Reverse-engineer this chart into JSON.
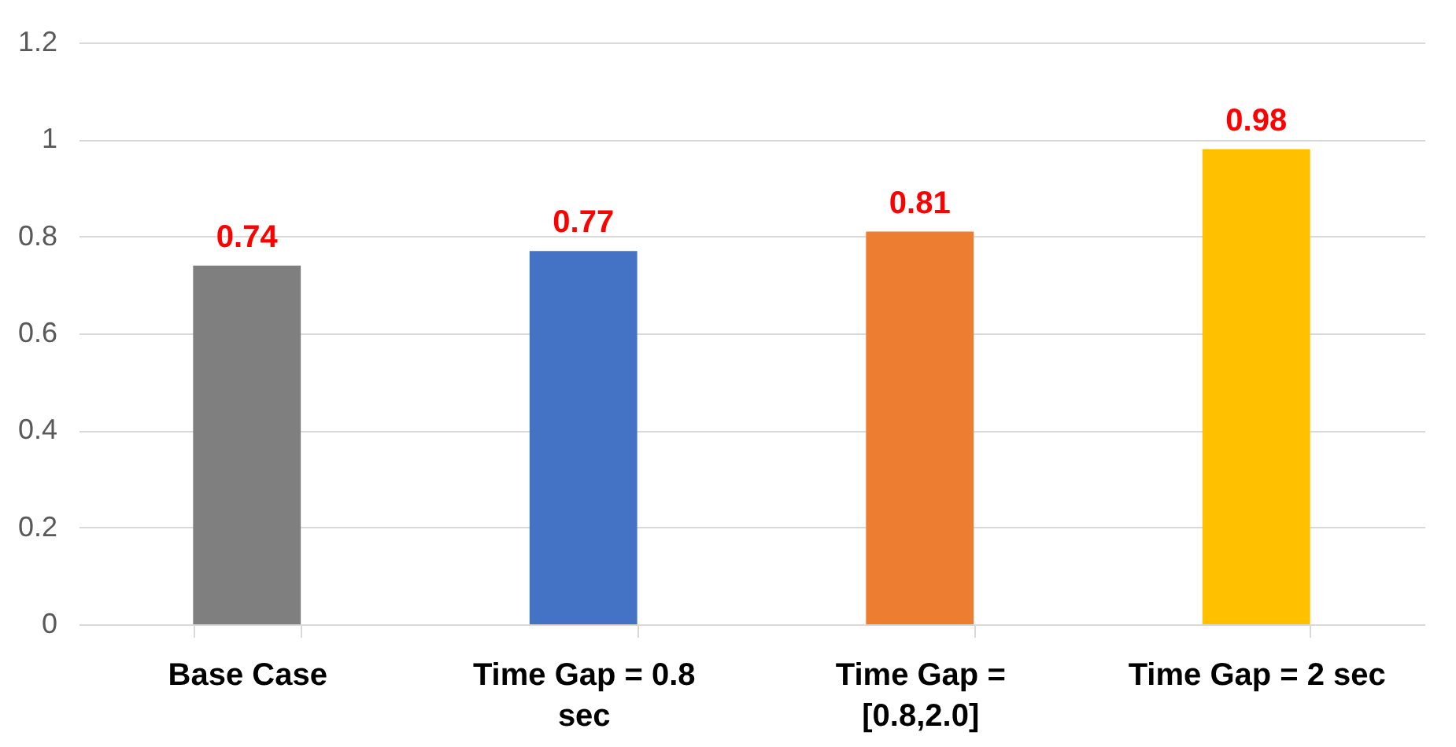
{
  "chart_data": {
    "type": "bar",
    "categories": [
      "Base Case",
      "Time Gap = 0.8 sec",
      "Time Gap = [0.8,2.0]",
      "Time Gap = 2 sec"
    ],
    "values": [
      0.74,
      0.77,
      0.81,
      0.98
    ],
    "colors": [
      "#7f7f7f",
      "#4472c4",
      "#ed7d31",
      "#ffc000"
    ],
    "ylim": [
      0,
      1.2
    ],
    "yticks": [
      0,
      0.2,
      0.4,
      0.6,
      0.8,
      1,
      1.2
    ],
    "grid": "y",
    "data_labels": true
  }
}
